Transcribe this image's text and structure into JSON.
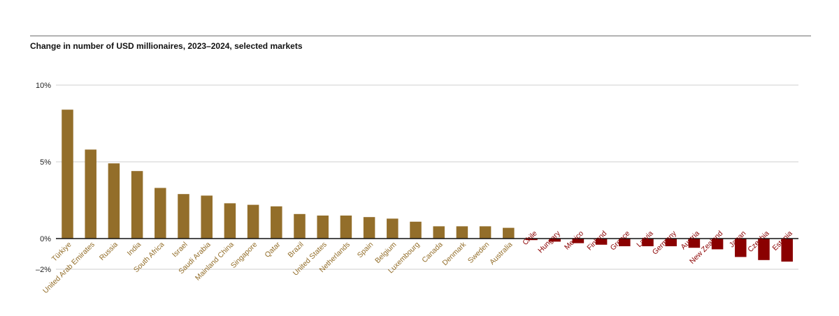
{
  "chart_data": {
    "type": "bar",
    "title": "Change in number of USD millionaires, 2023–2024, selected markets",
    "xlabel": "",
    "ylabel": "",
    "ylim": [
      -2,
      10
    ],
    "yticks": [
      {
        "value": 10,
        "label": "10%"
      },
      {
        "value": 5,
        "label": "5%"
      },
      {
        "value": 0,
        "label": "0%"
      },
      {
        "value": -2,
        "label": "–2%"
      }
    ],
    "grid": true,
    "legend": "none",
    "positive_color": "#936e2a",
    "negative_color": "#8a0000",
    "categories": [
      "Türkiye",
      "United Arab Emirates",
      "Russia",
      "India",
      "South Africa",
      "Israel",
      "Saudi Arabia",
      "Mainland China",
      "Singapore",
      "Qatar",
      "Brazil",
      "United States",
      "Netherlands",
      "Spain",
      "Belgium",
      "Luxembourg",
      "Canada",
      "Denmark",
      "Sweden",
      "Australia",
      "Chile",
      "Hungary",
      "Mexico",
      "Finland",
      "Greece",
      "Latvia",
      "Germany",
      "Austria",
      "New Zealand",
      "Japan",
      "Czechia",
      "Estonia"
    ],
    "values": [
      8.4,
      5.8,
      4.9,
      4.4,
      3.3,
      2.9,
      2.8,
      2.3,
      2.2,
      2.1,
      1.6,
      1.5,
      1.5,
      1.4,
      1.3,
      1.1,
      0.8,
      0.8,
      0.8,
      0.7,
      -0.1,
      -0.2,
      -0.3,
      -0.4,
      -0.5,
      -0.5,
      -0.5,
      -0.6,
      -0.7,
      -1.2,
      -1.4,
      -1.5
    ]
  }
}
